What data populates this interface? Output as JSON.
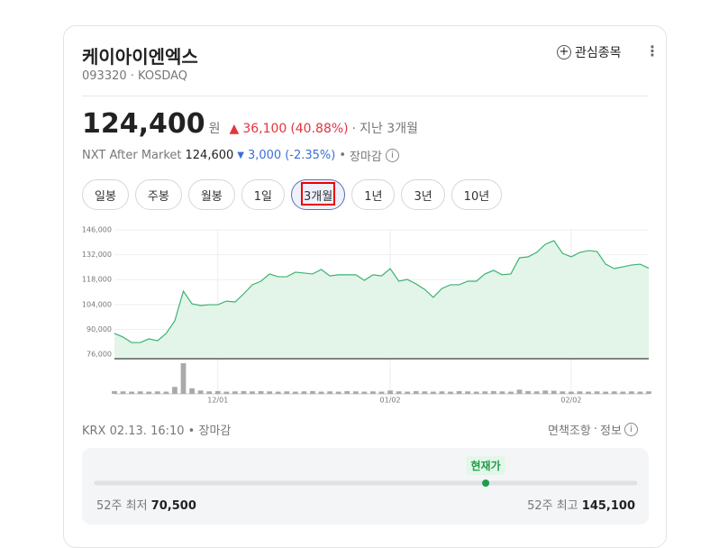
{
  "header": {
    "name": "케이아이엔엑스",
    "code": "093320",
    "market": "KOSDAQ",
    "watchlist": "관심종목"
  },
  "price": {
    "value": "124,400",
    "unit": "원",
    "change": "36,100",
    "change_pct": "(40.88%)",
    "period": "지난 3개월"
  },
  "after_market": {
    "label": "NXT After Market",
    "price": "124,600",
    "change": "3,000",
    "change_pct": "(-2.35%)",
    "status": "장마감"
  },
  "tabs": {
    "items": [
      "일봉",
      "주봉",
      "월봉",
      "1일",
      "3개월",
      "1년",
      "3년",
      "10년"
    ],
    "selected": 4
  },
  "chart_data": {
    "type": "area",
    "color": "#3cb371",
    "fill": "#e3f5e9",
    "volume_color": "#a9a9a9",
    "categories": [
      null,
      null,
      null,
      null,
      null,
      null,
      null,
      null,
      null,
      null,
      null,
      null,
      "12/01",
      null,
      null,
      null,
      null,
      null,
      null,
      null,
      null,
      null,
      null,
      null,
      null,
      null,
      null,
      null,
      null,
      null,
      null,
      null,
      "01/02",
      null,
      null,
      null,
      null,
      null,
      null,
      null,
      null,
      null,
      null,
      null,
      null,
      null,
      null,
      null,
      null,
      null,
      null,
      null,
      null,
      "02/02",
      null,
      null,
      null,
      null,
      null,
      null,
      null,
      null,
      null
    ],
    "values": [
      87700,
      85700,
      82600,
      82600,
      84700,
      83600,
      87700,
      94800,
      111500,
      104400,
      103400,
      103900,
      103900,
      105900,
      105400,
      110000,
      115100,
      117100,
      121200,
      119600,
      119600,
      122200,
      121700,
      121200,
      123700,
      120100,
      120700,
      120700,
      120700,
      117600,
      120700,
      120100,
      124200,
      117100,
      118100,
      115600,
      112500,
      108000,
      113000,
      115100,
      115100,
      117100,
      117100,
      121200,
      123200,
      120700,
      121200,
      130300,
      130800,
      133300,
      137900,
      139900,
      132800,
      130800,
      133300,
      134300,
      133800,
      126700,
      124200,
      125200,
      126200,
      126700,
      124400
    ],
    "volume": [
      100000,
      90000,
      80000,
      90000,
      80000,
      90000,
      80000,
      250000,
      1100000,
      200000,
      120000,
      90000,
      100000,
      80000,
      90000,
      100000,
      90000,
      100000,
      90000,
      80000,
      90000,
      80000,
      90000,
      100000,
      80000,
      90000,
      80000,
      100000,
      90000,
      80000,
      90000,
      80000,
      120000,
      90000,
      80000,
      100000,
      90000,
      80000,
      90000,
      80000,
      100000,
      90000,
      80000,
      90000,
      100000,
      90000,
      80000,
      150000,
      100000,
      90000,
      120000,
      110000,
      90000,
      80000,
      90000,
      80000,
      90000,
      80000,
      90000,
      80000,
      90000,
      80000,
      90000
    ],
    "ylim": [
      73500,
      146000
    ],
    "yticks": [
      {
        "value": 76000,
        "label": "76,000"
      },
      {
        "value": 90000,
        "label": "90,000"
      },
      {
        "value": 104000,
        "label": "104,000"
      },
      {
        "value": 118000,
        "label": "118,000"
      },
      {
        "value": 132000,
        "label": "132,000"
      },
      {
        "value": 146000,
        "label": "146,000"
      }
    ],
    "grid": true
  },
  "footer": {
    "source": "KRX 02.13. 16:10",
    "status": "장마감",
    "disclaimer": "면책조항",
    "info": "정보"
  },
  "range": {
    "current_label": "현재가",
    "low_label": "52주 최저",
    "low": "70,500",
    "high_label": "52주 최고",
    "high": "145,100"
  }
}
